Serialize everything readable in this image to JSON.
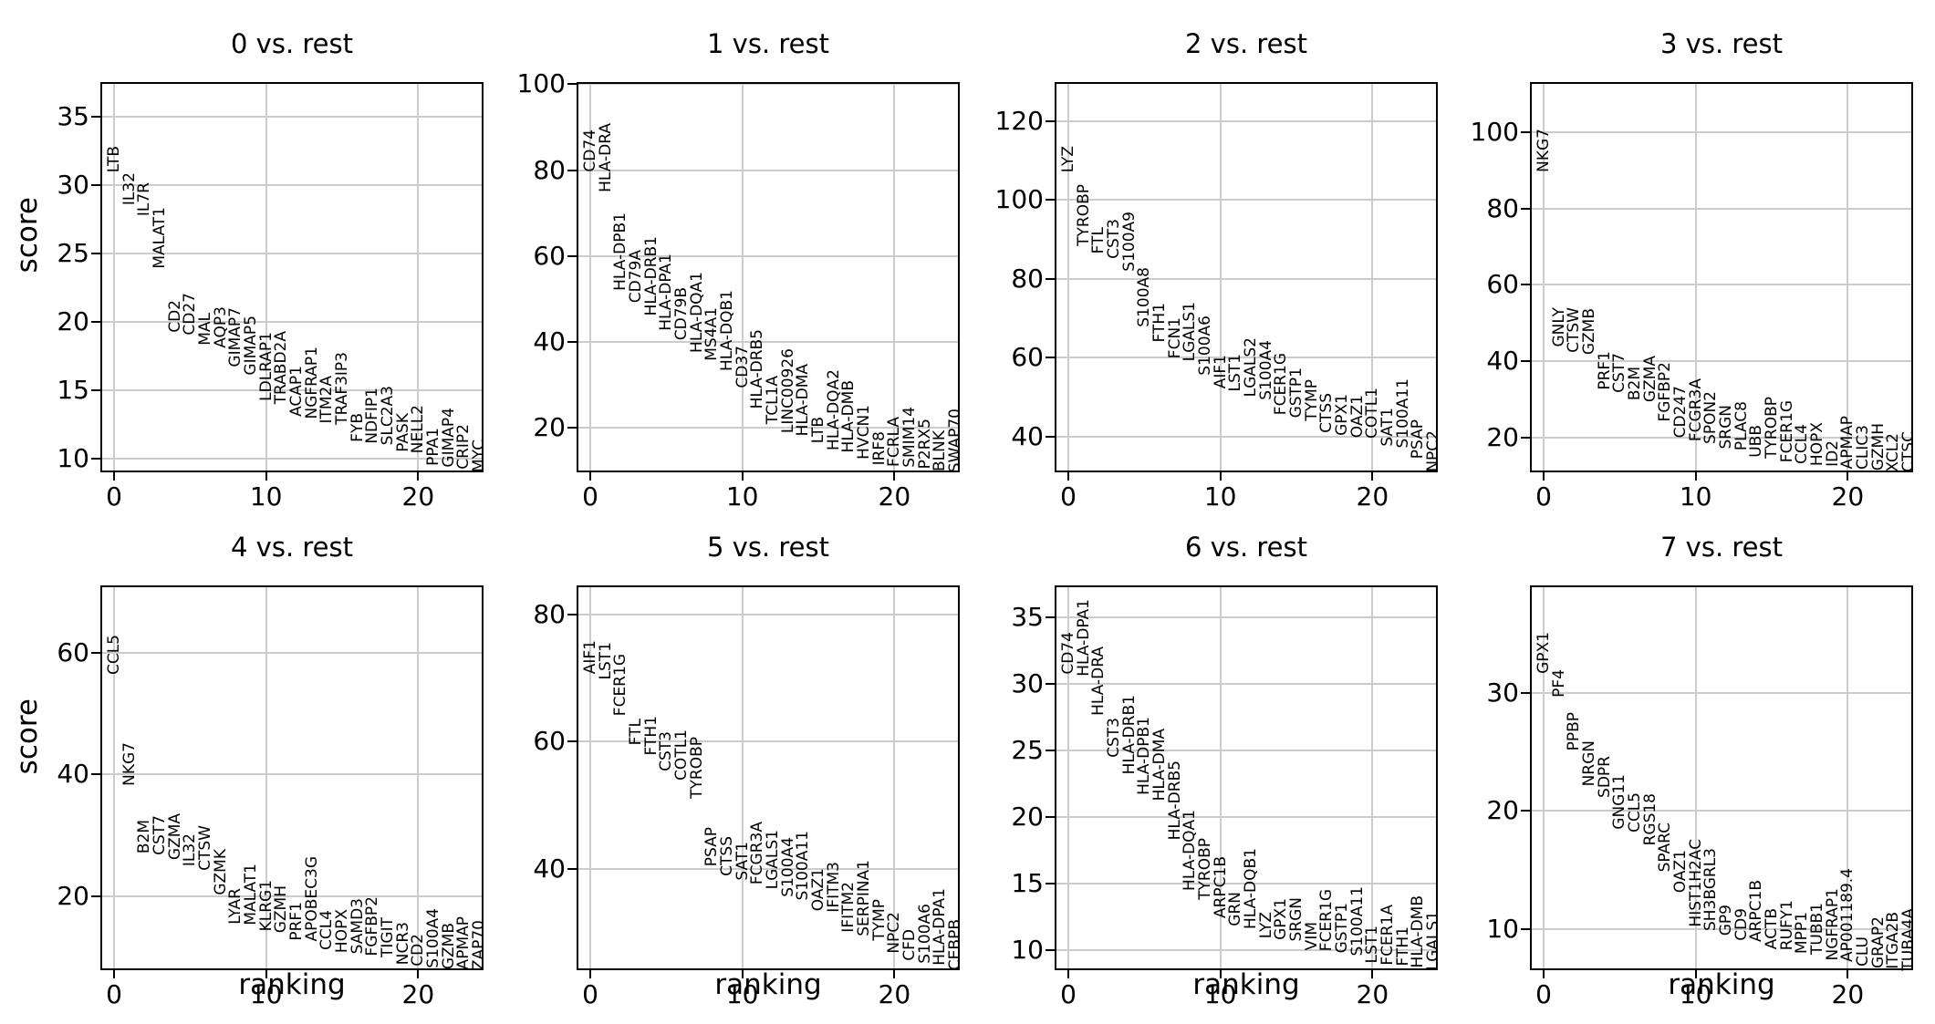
{
  "figure": {
    "background": "#ffffff",
    "grid_color": "#cccccc",
    "frame_color": "#000000",
    "text_color": "#000000",
    "grid": "on"
  },
  "axes": {
    "xlabel": "ranking",
    "ylabel": "score",
    "xticks": [
      0,
      10,
      20
    ],
    "xlim": [
      -0.9,
      24.3
    ]
  },
  "chart_data": [
    {
      "type": "scatter",
      "title": "0 vs. rest",
      "xlabel": "ranking",
      "ylabel": "score",
      "yticks": [
        10,
        15,
        20,
        25,
        30,
        35
      ],
      "ylim": [
        9.0,
        37.5
      ],
      "genes": [
        {
          "name": "LTB",
          "score": 30.9
        },
        {
          "name": "IL32",
          "score": 28.5
        },
        {
          "name": "IL7R",
          "score": 27.7
        },
        {
          "name": "MALAT1",
          "score": 23.9
        },
        {
          "name": "CD2",
          "score": 19.2
        },
        {
          "name": "CD27",
          "score": 19.0
        },
        {
          "name": "MAL",
          "score": 18.3
        },
        {
          "name": "AQP3",
          "score": 18.1
        },
        {
          "name": "GIMAP7",
          "score": 16.7
        },
        {
          "name": "GIMAP5",
          "score": 16.1
        },
        {
          "name": "LDLRAP1",
          "score": 14.2
        },
        {
          "name": "TRABD2A",
          "score": 14.0
        },
        {
          "name": "ACAP1",
          "score": 13.1
        },
        {
          "name": "NGFRAP1",
          "score": 12.9
        },
        {
          "name": "ITM2A",
          "score": 12.6
        },
        {
          "name": "TRAF3IP3",
          "score": 12.5
        },
        {
          "name": "FYB",
          "score": 11.2
        },
        {
          "name": "NDFIP1",
          "score": 11.1
        },
        {
          "name": "SLC2A3",
          "score": 11.0
        },
        {
          "name": "PASK",
          "score": 10.5
        },
        {
          "name": "NELL2",
          "score": 10.4
        },
        {
          "name": "PPA1",
          "score": 9.5
        },
        {
          "name": "GIMAP4",
          "score": 9.4
        },
        {
          "name": "CRIP2",
          "score": 9.2
        },
        {
          "name": "MYC",
          "score": 9.0
        }
      ]
    },
    {
      "type": "scatter",
      "title": "1 vs. rest",
      "xlabel": "ranking",
      "ylabel": "score",
      "yticks": [
        20,
        40,
        60,
        80,
        100
      ],
      "ylim": [
        9.6,
        100.5
      ],
      "genes": [
        {
          "name": "CD74",
          "score": 79.5
        },
        {
          "name": "HLA-DRA",
          "score": 74.8
        },
        {
          "name": "HLA-DPB1",
          "score": 51.9
        },
        {
          "name": "CD79A",
          "score": 49.0
        },
        {
          "name": "HLA-DRB1",
          "score": 46.1
        },
        {
          "name": "HLA-DPA1",
          "score": 42.5
        },
        {
          "name": "CD79B",
          "score": 40.4
        },
        {
          "name": "HLA-DQA1",
          "score": 37.5
        },
        {
          "name": "MS4A1",
          "score": 35.7
        },
        {
          "name": "HLA-DQB1",
          "score": 33.2
        },
        {
          "name": "CD37",
          "score": 29.2
        },
        {
          "name": "HLA-DRB5",
          "score": 24.5
        },
        {
          "name": "TCL1A",
          "score": 20.9
        },
        {
          "name": "LINC00926",
          "score": 18.8
        },
        {
          "name": "HLA-DMA",
          "score": 18.0
        },
        {
          "name": "LTB",
          "score": 16.3
        },
        {
          "name": "HLA-DQA2",
          "score": 14.8
        },
        {
          "name": "HLA-DMB",
          "score": 14.1
        },
        {
          "name": "HVCN1",
          "score": 12.7
        },
        {
          "name": "IRF8",
          "score": 11.2
        },
        {
          "name": "FCRLA",
          "score": 11.0
        },
        {
          "name": "SMIM14",
          "score": 10.8
        },
        {
          "name": "P2RX5",
          "score": 10.4
        },
        {
          "name": "BLNK",
          "score": 9.8
        },
        {
          "name": "SWAP70",
          "score": 9.6
        }
      ]
    },
    {
      "type": "scatter",
      "title": "2 vs. rest",
      "xlabel": "ranking",
      "ylabel": "score",
      "yticks": [
        40,
        60,
        80,
        100,
        120
      ],
      "ylim": [
        31.0,
        129.8
      ],
      "genes": [
        {
          "name": "LYZ",
          "score": 107.0
        },
        {
          "name": "TYROBP",
          "score": 88.2
        },
        {
          "name": "FTL",
          "score": 86.3
        },
        {
          "name": "CST3",
          "score": 85.1
        },
        {
          "name": "S100A9",
          "score": 82.0
        },
        {
          "name": "S100A8",
          "score": 67.9
        },
        {
          "name": "FTH1",
          "score": 64.0
        },
        {
          "name": "FCN1",
          "score": 59.8
        },
        {
          "name": "LGALS1",
          "score": 59.0
        },
        {
          "name": "S100A6",
          "score": 55.6
        },
        {
          "name": "AIF1",
          "score": 52.1
        },
        {
          "name": "LST1",
          "score": 51.4
        },
        {
          "name": "LGALS2",
          "score": 50.2
        },
        {
          "name": "S100A4",
          "score": 49.4
        },
        {
          "name": "FCER1G",
          "score": 45.6
        },
        {
          "name": "GSTP1",
          "score": 44.8
        },
        {
          "name": "TYMP",
          "score": 44.1
        },
        {
          "name": "CTSS",
          "score": 41.0
        },
        {
          "name": "GPX1",
          "score": 40.2
        },
        {
          "name": "OAZ1",
          "score": 39.8
        },
        {
          "name": "COTL1",
          "score": 39.5
        },
        {
          "name": "SAT1",
          "score": 37.5
        },
        {
          "name": "S100A11",
          "score": 37.2
        },
        {
          "name": "PSAP",
          "score": 34.5
        },
        {
          "name": "NPC2",
          "score": 31.0
        }
      ]
    },
    {
      "type": "scatter",
      "title": "3 vs. rest",
      "xlabel": "ranking",
      "ylabel": "score",
      "yticks": [
        20,
        40,
        60,
        80,
        100
      ],
      "ylim": [
        10.8,
        113.1
      ],
      "genes": [
        {
          "name": "NKG7",
          "score": 89.5
        },
        {
          "name": "GNLY",
          "score": 43.7
        },
        {
          "name": "CTSW",
          "score": 42.1
        },
        {
          "name": "GZMB",
          "score": 41.7
        },
        {
          "name": "PRF1",
          "score": 32.5
        },
        {
          "name": "CST7",
          "score": 31.7
        },
        {
          "name": "B2M",
          "score": 29.7
        },
        {
          "name": "GZMA",
          "score": 29.3
        },
        {
          "name": "FGFBP2",
          "score": 24.1
        },
        {
          "name": "CD247",
          "score": 19.8
        },
        {
          "name": "FCGR3A",
          "score": 19.0
        },
        {
          "name": "SPON2",
          "score": 18.2
        },
        {
          "name": "SRGN",
          "score": 17.0
        },
        {
          "name": "PLAC8",
          "score": 16.6
        },
        {
          "name": "UBB",
          "score": 14.6
        },
        {
          "name": "TYROBP",
          "score": 14.4
        },
        {
          "name": "FCER1G",
          "score": 13.4
        },
        {
          "name": "CCL4",
          "score": 13.0
        },
        {
          "name": "HOPX",
          "score": 12.6
        },
        {
          "name": "ID2",
          "score": 12.2
        },
        {
          "name": "APMAP",
          "score": 11.8
        },
        {
          "name": "CLIC3",
          "score": 11.5
        },
        {
          "name": "GZMH",
          "score": 11.3
        },
        {
          "name": "XCL2",
          "score": 11.0
        },
        {
          "name": "CTSC",
          "score": 10.8
        }
      ]
    },
    {
      "type": "scatter",
      "title": "4 vs. rest",
      "xlabel": "ranking",
      "ylabel": "score",
      "yticks": [
        20,
        40,
        60
      ],
      "ylim": [
        7.9,
        71.0
      ],
      "genes": [
        {
          "name": "CCL5",
          "score": 56.4
        },
        {
          "name": "NKG7",
          "score": 38.1
        },
        {
          "name": "B2M",
          "score": 27.0
        },
        {
          "name": "CST7",
          "score": 26.8
        },
        {
          "name": "GZMA",
          "score": 26.0
        },
        {
          "name": "IL32",
          "score": 25.0
        },
        {
          "name": "CTSW",
          "score": 24.2
        },
        {
          "name": "GZMK",
          "score": 20.3
        },
        {
          "name": "LYAR",
          "score": 15.5
        },
        {
          "name": "MALAT1",
          "score": 15.3
        },
        {
          "name": "KLRG1",
          "score": 14.3
        },
        {
          "name": "GZMH",
          "score": 14.0
        },
        {
          "name": "PRF1",
          "score": 12.8
        },
        {
          "name": "APOBEC3G",
          "score": 12.6
        },
        {
          "name": "CCL4",
          "score": 11.2
        },
        {
          "name": "HOPX",
          "score": 10.8
        },
        {
          "name": "SAMD3",
          "score": 10.6
        },
        {
          "name": "FGFBP2",
          "score": 10.2
        },
        {
          "name": "TIGIT",
          "score": 10.0
        },
        {
          "name": "NCR3",
          "score": 8.8
        },
        {
          "name": "CD2",
          "score": 8.6
        },
        {
          "name": "S100A4",
          "score": 8.3
        },
        {
          "name": "GZMB",
          "score": 8.1
        },
        {
          "name": "APMAP",
          "score": 8.0
        },
        {
          "name": "ZAP70",
          "score": 7.9
        }
      ]
    },
    {
      "type": "scatter",
      "title": "5 vs. rest",
      "xlabel": "ranking",
      "ylabel": "score",
      "yticks": [
        40,
        60,
        80
      ],
      "ylim": [
        24.0,
        84.6
      ],
      "genes": [
        {
          "name": "AIF1",
          "score": 70.6
        },
        {
          "name": "LST1",
          "score": 69.7
        },
        {
          "name": "FCER1G",
          "score": 64.0
        },
        {
          "name": "FTL",
          "score": 59.5
        },
        {
          "name": "FTH1",
          "score": 57.8
        },
        {
          "name": "CST3",
          "score": 55.4
        },
        {
          "name": "COTL1",
          "score": 53.9
        },
        {
          "name": "TYROBP",
          "score": 51.0
        },
        {
          "name": "PSAP",
          "score": 40.4
        },
        {
          "name": "CTSS",
          "score": 38.9
        },
        {
          "name": "SAT1",
          "score": 38.2
        },
        {
          "name": "FCGR3A",
          "score": 37.5
        },
        {
          "name": "LGALS1",
          "score": 36.7
        },
        {
          "name": "S100A4",
          "score": 35.5
        },
        {
          "name": "S100A11",
          "score": 35.0
        },
        {
          "name": "OAZ1",
          "score": 33.3
        },
        {
          "name": "IFITM3",
          "score": 33.1
        },
        {
          "name": "IFITM2",
          "score": 29.9
        },
        {
          "name": "SERPINA1",
          "score": 29.4
        },
        {
          "name": "TYMP",
          "score": 28.7
        },
        {
          "name": "NPC2",
          "score": 26.7
        },
        {
          "name": "CFD",
          "score": 25.5
        },
        {
          "name": "S100A6",
          "score": 25.0
        },
        {
          "name": "HLA-DPA1",
          "score": 24.8
        },
        {
          "name": "CEBPB",
          "score": 24.0
        }
      ]
    },
    {
      "type": "scatter",
      "title": "6 vs. rest",
      "xlabel": "ranking",
      "ylabel": "score",
      "yticks": [
        10,
        15,
        20,
        25,
        30,
        35
      ],
      "ylim": [
        8.5,
        37.4
      ],
      "genes": [
        {
          "name": "CD74",
          "score": 30.7
        },
        {
          "name": "HLA-DPA1",
          "score": 30.6
        },
        {
          "name": "HLA-DRA",
          "score": 27.6
        },
        {
          "name": "CST3",
          "score": 24.5
        },
        {
          "name": "HLA-DRB1",
          "score": 23.2
        },
        {
          "name": "HLA-DPB1",
          "score": 21.7
        },
        {
          "name": "HLA-DMA",
          "score": 21.2
        },
        {
          "name": "HLA-DRB5",
          "score": 18.3
        },
        {
          "name": "HLA-DQA1",
          "score": 14.5
        },
        {
          "name": "TYROBP",
          "score": 13.8
        },
        {
          "name": "ARPC1B",
          "score": 12.4
        },
        {
          "name": "GRN",
          "score": 11.8
        },
        {
          "name": "HLA-DQB1",
          "score": 11.6
        },
        {
          "name": "LYZ",
          "score": 10.9
        },
        {
          "name": "GPX1",
          "score": 10.8
        },
        {
          "name": "SRGN",
          "score": 10.7
        },
        {
          "name": "VIM",
          "score": 10.0
        },
        {
          "name": "FCER1G",
          "score": 9.9
        },
        {
          "name": "GSTP1",
          "score": 9.8
        },
        {
          "name": "S100A11",
          "score": 9.6
        },
        {
          "name": "LST1",
          "score": 9.0
        },
        {
          "name": "FCER1A",
          "score": 8.9
        },
        {
          "name": "FTH1",
          "score": 8.8
        },
        {
          "name": "HLA-DMB",
          "score": 8.7
        },
        {
          "name": "LGALS1",
          "score": 8.5
        }
      ]
    },
    {
      "type": "scatter",
      "title": "7 vs. rest",
      "xlabel": "ranking",
      "ylabel": "score",
      "yticks": [
        10,
        20,
        30
      ],
      "ylim": [
        6.5,
        39.1
      ],
      "genes": [
        {
          "name": "GPX1",
          "score": 31.6
        },
        {
          "name": "PF4",
          "score": 29.6
        },
        {
          "name": "PPBP",
          "score": 25.1
        },
        {
          "name": "NRGN",
          "score": 22.1
        },
        {
          "name": "SDPR",
          "score": 21.1
        },
        {
          "name": "GNG11",
          "score": 18.4
        },
        {
          "name": "CCL5",
          "score": 18.2
        },
        {
          "name": "RGS18",
          "score": 17.1
        },
        {
          "name": "SPARC",
          "score": 14.8
        },
        {
          "name": "OAZ1",
          "score": 13.1
        },
        {
          "name": "HIST1H2AC",
          "score": 10.2
        },
        {
          "name": "SH3BGRL3",
          "score": 9.8
        },
        {
          "name": "GP9",
          "score": 9.4
        },
        {
          "name": "CD9",
          "score": 9.0
        },
        {
          "name": "ARPC1B",
          "score": 8.9
        },
        {
          "name": "ACTB",
          "score": 8.3
        },
        {
          "name": "RUFY1",
          "score": 8.2
        },
        {
          "name": "MPP1",
          "score": 7.9
        },
        {
          "name": "TUBB1",
          "score": 7.8
        },
        {
          "name": "NGFRAP1",
          "score": 7.3
        },
        {
          "name": "AP001189.4",
          "score": 7.2
        },
        {
          "name": "CLU",
          "score": 6.8
        },
        {
          "name": "GRAP2",
          "score": 6.7
        },
        {
          "name": "ITGA2B",
          "score": 6.6
        },
        {
          "name": "TUBA4A",
          "score": 6.5
        }
      ]
    }
  ]
}
